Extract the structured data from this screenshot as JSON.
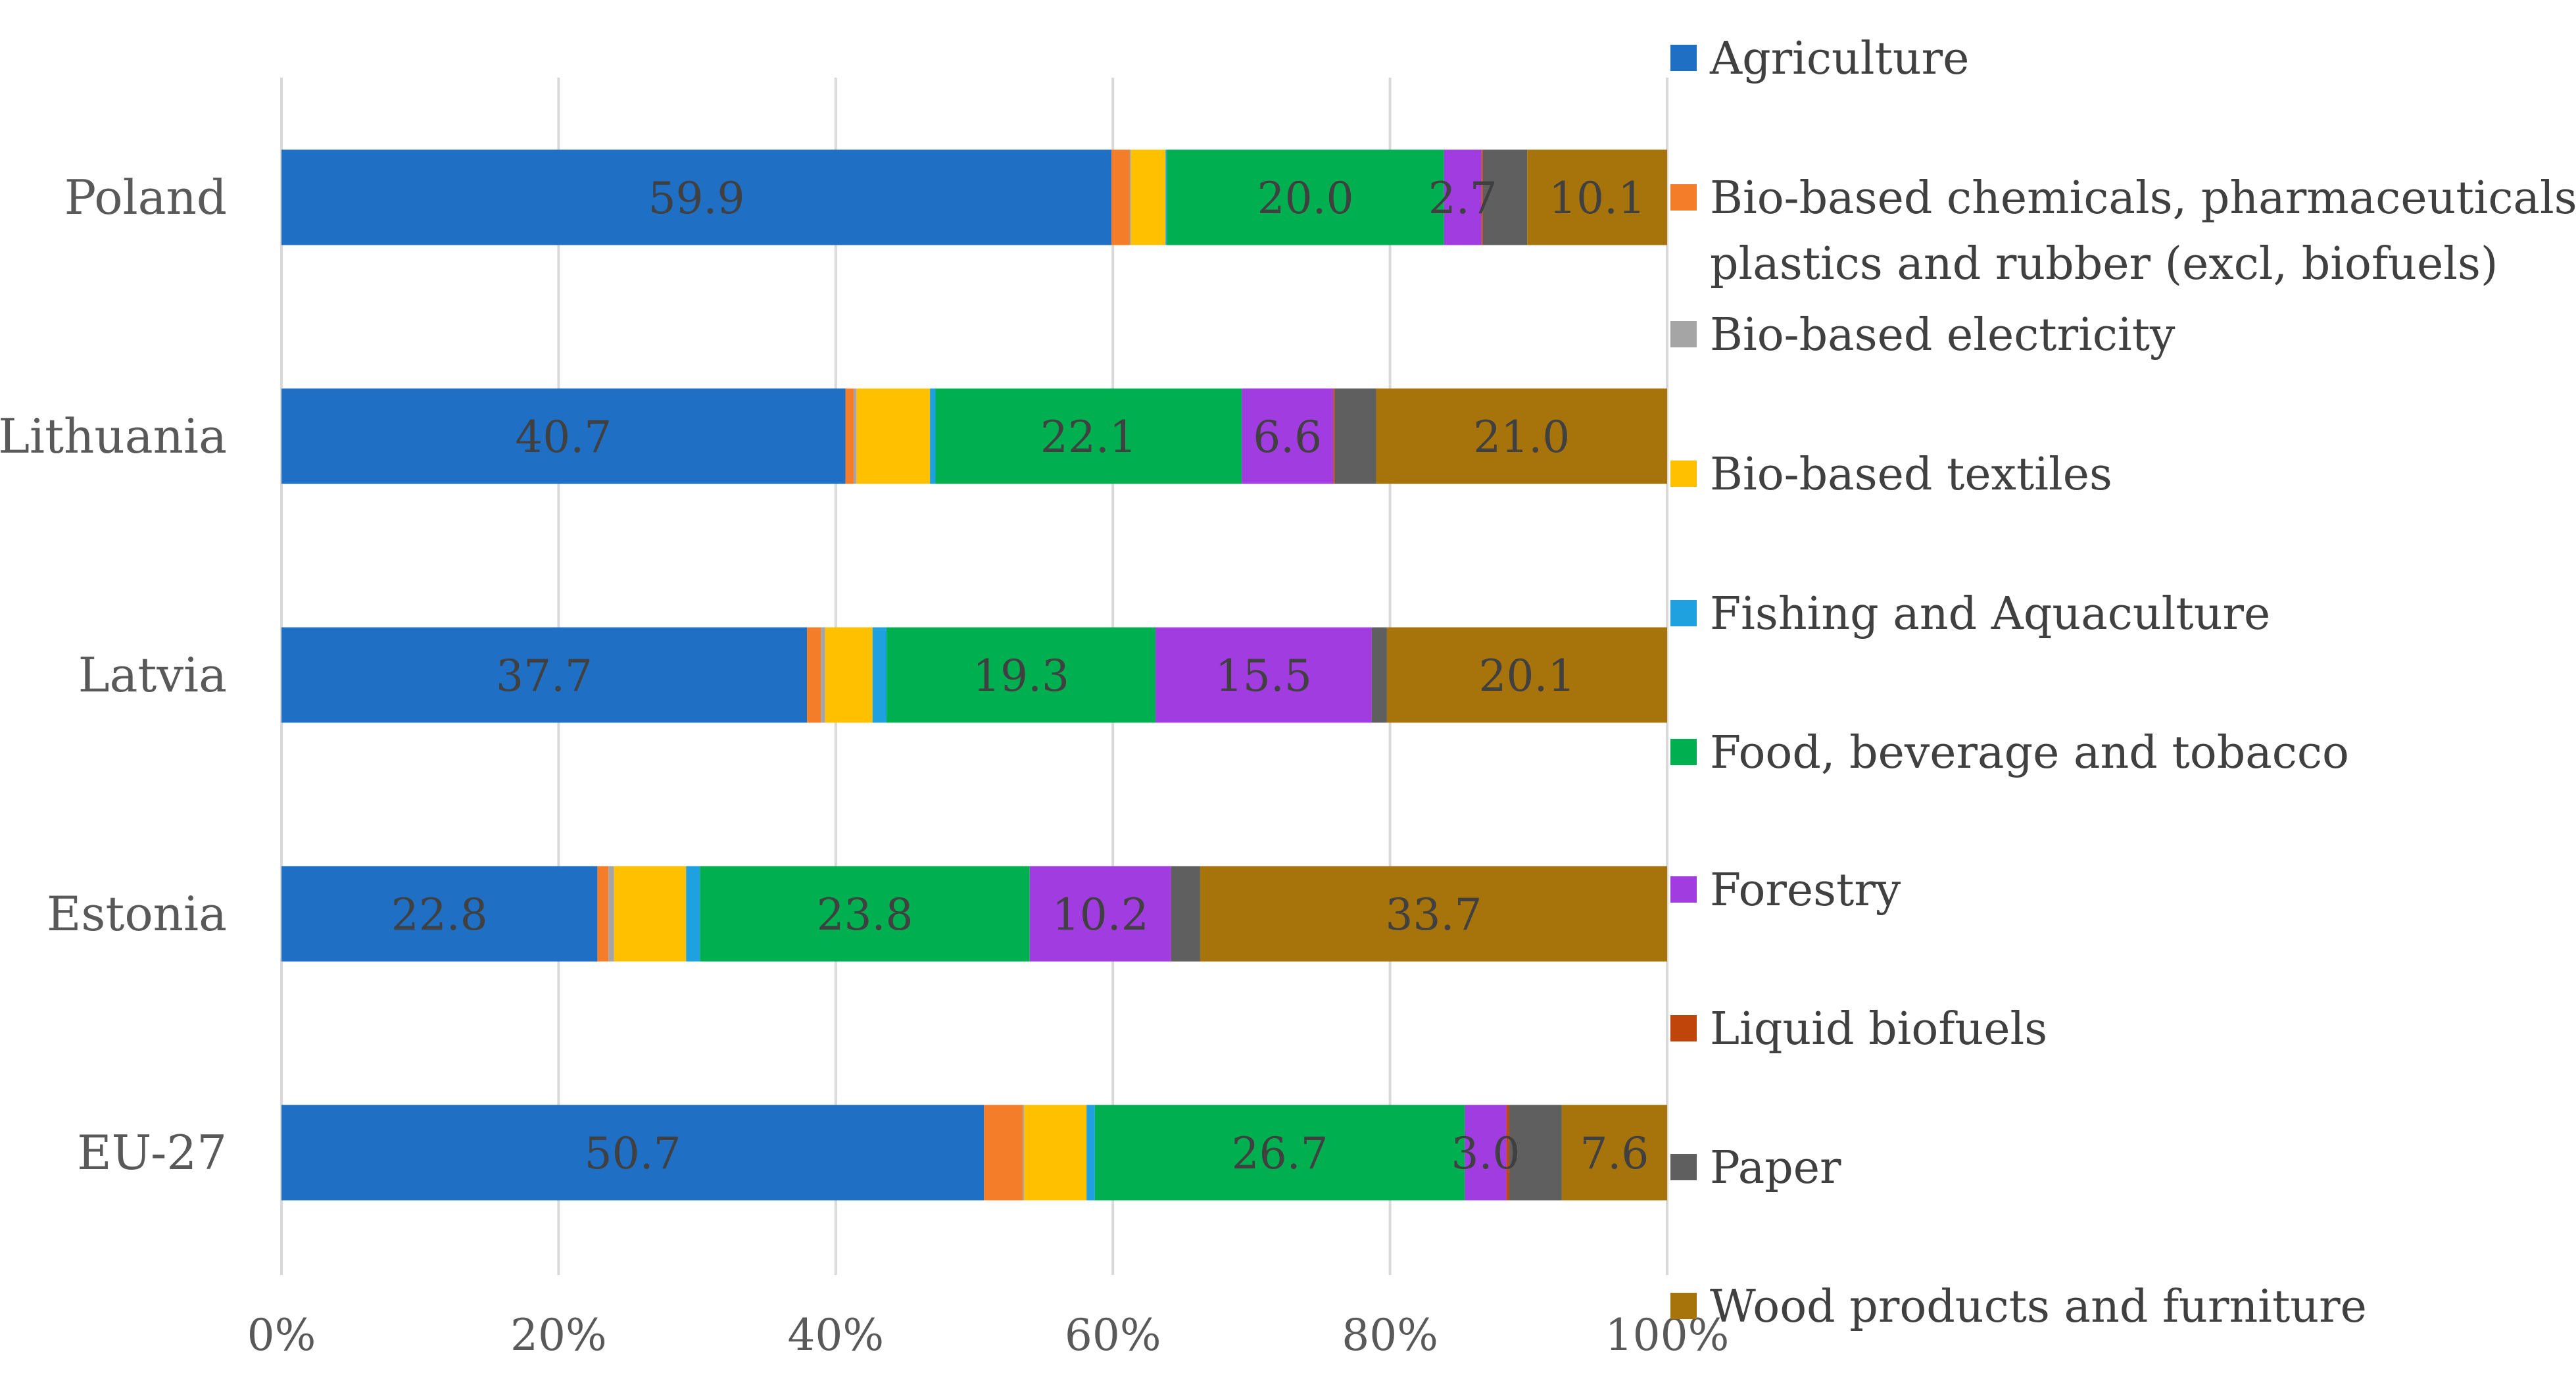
{
  "chart_data": {
    "type": "bar",
    "orientation": "horizontal",
    "stacked": "percent",
    "categories": [
      "Poland",
      "Lithuania",
      "Latvia",
      "Estonia",
      "EU-27"
    ],
    "x_ticks": [
      "0%",
      "20%",
      "40%",
      "60%",
      "80%",
      "100%"
    ],
    "xlim": [
      0,
      100
    ],
    "grid": true,
    "legend_position": "right",
    "legend": [
      "Agriculture",
      "Bio-based chemicals, pharmaceuticals, plastics and rubber (excl, biofuels)",
      "Bio-based electricity",
      "Bio-based textiles",
      "Fishing and Aquaculture",
      "Food, beverage and tobacco",
      "Forestry",
      "Liquid biofuels",
      "Paper",
      "Wood products and furniture"
    ],
    "series": [
      {
        "name": "Agriculture",
        "color": "#1F6FC5",
        "values": [
          59.9,
          40.7,
          37.7,
          22.8,
          50.7
        ],
        "labels": [
          "59.9",
          "40.7",
          "37.7",
          "22.8",
          "50.7"
        ]
      },
      {
        "name": "Bio-based chemicals, pharmaceuticals, plastics and rubber (excl, biofuels)",
        "color": "#F47D2A",
        "values": [
          1.3,
          0.6,
          1.0,
          0.8,
          2.8
        ],
        "labels": [
          "",
          "",
          "",
          "",
          ""
        ]
      },
      {
        "name": "Bio-based electricity",
        "color": "#A5A5A5",
        "values": [
          0.1,
          0.2,
          0.3,
          0.4,
          0.1
        ],
        "labels": [
          "",
          "",
          "",
          "",
          ""
        ]
      },
      {
        "name": "Bio-based textiles",
        "color": "#FFC000",
        "values": [
          2.5,
          5.3,
          3.4,
          5.2,
          4.5
        ],
        "labels": [
          "",
          "",
          "",
          "",
          ""
        ]
      },
      {
        "name": "Fishing and Aquaculture",
        "color": "#1FA1DF",
        "values": [
          0.1,
          0.4,
          1.0,
          1.0,
          0.6
        ],
        "labels": [
          "",
          "",
          "",
          "",
          ""
        ]
      },
      {
        "name": "Food, beverage and tobacco",
        "color": "#00B050",
        "values": [
          20.0,
          22.1,
          19.3,
          23.8,
          26.7
        ],
        "labels": [
          "20.0",
          "22.1",
          "19.3",
          "23.8",
          "26.7"
        ]
      },
      {
        "name": "Forestry",
        "color": "#A13DE0",
        "values": [
          2.7,
          6.6,
          15.5,
          10.2,
          3.0
        ],
        "labels": [
          "2.7",
          "6.6",
          "15.5",
          "10.2",
          "3.0"
        ]
      },
      {
        "name": "Liquid biofuels",
        "color": "#C0450B",
        "values": [
          0.1,
          0.1,
          0.0,
          0.0,
          0.2
        ],
        "labels": [
          "",
          "",
          "",
          "",
          ""
        ]
      },
      {
        "name": "Paper",
        "color": "#5F5F5F",
        "values": [
          3.2,
          3.0,
          1.1,
          2.1,
          3.8
        ],
        "labels": [
          "",
          "",
          "",
          "",
          ""
        ]
      },
      {
        "name": "Wood products and furniture",
        "color": "#A6740A",
        "values": [
          10.1,
          21.0,
          20.1,
          33.7,
          7.6
        ],
        "labels": [
          "10.1",
          "21.0",
          "20.1",
          "33.7",
          "7.6"
        ]
      }
    ]
  }
}
